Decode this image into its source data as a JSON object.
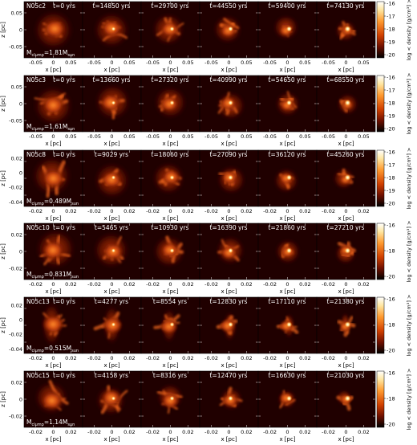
{
  "rows": [
    {
      "id": "N05c2",
      "mass": "1.81",
      "times": [
        "t=0 yrs",
        "t=14850 yrs",
        "t=29700 yrs",
        "t=44550 yrs",
        "t=59400 yrs",
        "t=74130 yrs"
      ],
      "x_ticks": [
        "-0.05",
        "0",
        "0.05"
      ],
      "x_ticks_last": [
        "-0.05",
        "0",
        "0.05"
      ],
      "z_ticks": [
        "0.05",
        "0",
        "-0.05"
      ],
      "cbar_ticks": [
        "-16",
        "-17",
        "-18",
        "-19",
        "-20"
      ]
    },
    {
      "id": "N05c3",
      "mass": "1.61",
      "times": [
        "t=0 yrs",
        "t=13660 yrs",
        "t=27320 yrs",
        "t=40990 yrs",
        "t=54650 yrs",
        "t=68550 yrs"
      ],
      "x_ticks": [
        "-0.05",
        "0",
        "0.05"
      ],
      "x_ticks_last": [
        "-0.05",
        "0",
        "0.05"
      ],
      "z_ticks": [
        "0.05",
        "0",
        "-0.05"
      ],
      "cbar_ticks": [
        "-16",
        "-17",
        "-18",
        "-19",
        "-20"
      ]
    },
    {
      "id": "N05c8",
      "mass": "0.489",
      "times": [
        "t=0 yrs",
        "t=9029 yrs",
        "t=18060 yrs",
        "t=27090 yrs",
        "t=36120 yrs",
        "t=45260 yrs"
      ],
      "x_ticks": [
        "-0.02",
        "0",
        "0.02"
      ],
      "x_ticks_last": [
        "-0.02",
        "0",
        "0.02"
      ],
      "z_ticks": [
        "0.02",
        "0",
        "-0.02",
        "-0.04"
      ],
      "cbar_ticks": [
        "-16",
        "-17",
        "-18",
        "-19",
        "-20"
      ]
    },
    {
      "id": "N05c10",
      "mass": "0.831",
      "times": [
        "t=0 yrs",
        "t=5465 yrs",
        "t=10930 yrs",
        "t=16390 yrs",
        "t=21860 yrs",
        "t=27210 yrs"
      ],
      "x_ticks": [
        "-0.02",
        "0",
        "0.02"
      ],
      "x_ticks_last": [
        "-0.02",
        "0",
        "0.02"
      ],
      "z_ticks": [
        "0.02",
        "0",
        "-0.02"
      ],
      "cbar_ticks": [
        "-16",
        "-18",
        "-20"
      ]
    },
    {
      "id": "N05c13",
      "mass": "0.515",
      "times": [
        "t=0 yrs",
        "t=4277 yrs",
        "t=8554 yrs",
        "t=12830 yrs",
        "t=17110 yrs",
        "t=21380 yrs"
      ],
      "x_ticks": [
        "-0.02",
        "0",
        "0.02"
      ],
      "x_ticks_last": [
        "-0.02",
        "0",
        "0.02"
      ],
      "z_ticks": [
        "0.02",
        "0",
        "-0.02",
        "-0.04"
      ],
      "cbar_ticks": [
        "-16",
        "-18",
        "-20"
      ]
    },
    {
      "id": "N05c15",
      "mass": "1.14",
      "times": [
        "t=0 yrs",
        "t=4158 yrs",
        "t=8316 yrs",
        "t=12470 yrs",
        "t=16630 yrs",
        "t=21030 yrs"
      ],
      "x_ticks": [
        "-0.02",
        "0",
        "0.02"
      ],
      "x_ticks_last": [
        "-0.02",
        "0",
        "0.02"
      ],
      "z_ticks": [
        "0.02",
        "0",
        "-0.02"
      ],
      "cbar_ticks": [
        "-16",
        "-18",
        "-20"
      ]
    }
  ],
  "mass_prefix": "M",
  "mass_sub": "clump",
  "mass_eq": "=",
  "mass_unit_sub": "sun",
  "xlabel": "x [pc]",
  "zlabel": "z [pc]",
  "cbar_label": "log < density [g/cm³] >",
  "colors": {
    "bg": "#200000",
    "mid": "#a02000",
    "bright": "#ff7a1a",
    "hot": "#fff8d0"
  }
}
